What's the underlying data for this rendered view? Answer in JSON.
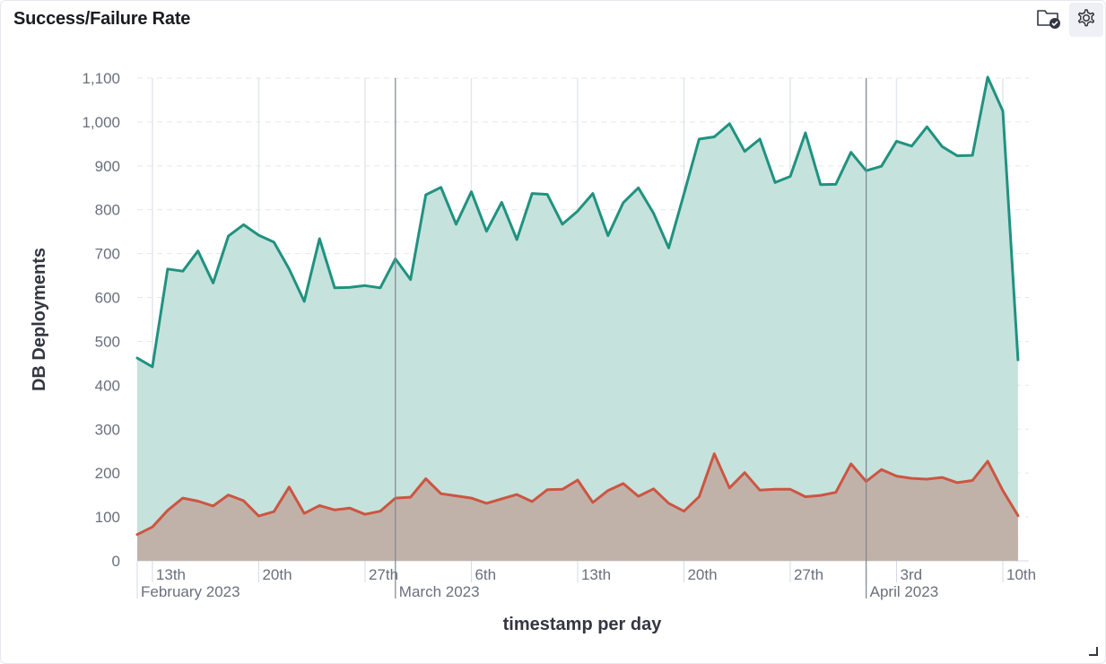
{
  "panel": {
    "title": "Success/Failure Rate",
    "toolbar": [
      {
        "icon": "folder-check-icon"
      },
      {
        "icon": "gear-icon"
      }
    ]
  },
  "chart_data": {
    "type": "area",
    "title": "Success/Failure Rate",
    "xlabel": "timestamp per day",
    "ylabel": "DB Deployments",
    "ylim": [
      0,
      1100
    ],
    "y_ticks": [
      "0",
      "100",
      "200",
      "300",
      "400",
      "500",
      "600",
      "700",
      "800",
      "900",
      "1,000",
      "1,100"
    ],
    "x_range": [
      "2023-02-12",
      "2023-04-10"
    ],
    "x_ticks": [
      {
        "date": "2023-02-13",
        "label": "13th"
      },
      {
        "date": "2023-02-20",
        "label": "20th"
      },
      {
        "date": "2023-02-27",
        "label": "27th"
      },
      {
        "date": "2023-03-06",
        "label": "6th"
      },
      {
        "date": "2023-03-13",
        "label": "13th"
      },
      {
        "date": "2023-03-20",
        "label": "20th"
      },
      {
        "date": "2023-03-27",
        "label": "27th"
      },
      {
        "date": "2023-04-03",
        "label": "3rd"
      },
      {
        "date": "2023-04-10",
        "label": "10th"
      }
    ],
    "period_labels": [
      {
        "date": "2023-02-12",
        "label": "February 2023"
      },
      {
        "date": "2023-03-01",
        "label": "March 2023"
      },
      {
        "date": "2023-04-01",
        "label": "April 2023"
      }
    ],
    "grid": true,
    "legend": "none",
    "series": [
      {
        "color": "#209280",
        "fill": "#c3e0da",
        "values": [
          462,
          442,
          665,
          660,
          706,
          633,
          740,
          766,
          742,
          726,
          665,
          591,
          734,
          622,
          623,
          627,
          622,
          688,
          641,
          834,
          851,
          767,
          841,
          751,
          817,
          732,
          837,
          835,
          767,
          797,
          837,
          741,
          816,
          850,
          792,
          713,
          836,
          961,
          966,
          996,
          933,
          961,
          862,
          876,
          975,
          857,
          858,
          931,
          889,
          899,
          956,
          945,
          989,
          944,
          923,
          924,
          1102,
          1025,
          458
        ]
      },
      {
        "color": "#cc5642",
        "fill": "#c1b2a9",
        "values": [
          60,
          77,
          115,
          143,
          136,
          125,
          150,
          137,
          102,
          112,
          168,
          108,
          126,
          116,
          120,
          106,
          113,
          143,
          145,
          187,
          153,
          148,
          143,
          131,
          141,
          151,
          135,
          162,
          163,
          184,
          133,
          160,
          176,
          147,
          164,
          131,
          113,
          146,
          244,
          166,
          201,
          161,
          163,
          163,
          146,
          149,
          156,
          221,
          181,
          208,
          193,
          188,
          186,
          190,
          178,
          183,
          227,
          160,
          103
        ]
      }
    ]
  }
}
